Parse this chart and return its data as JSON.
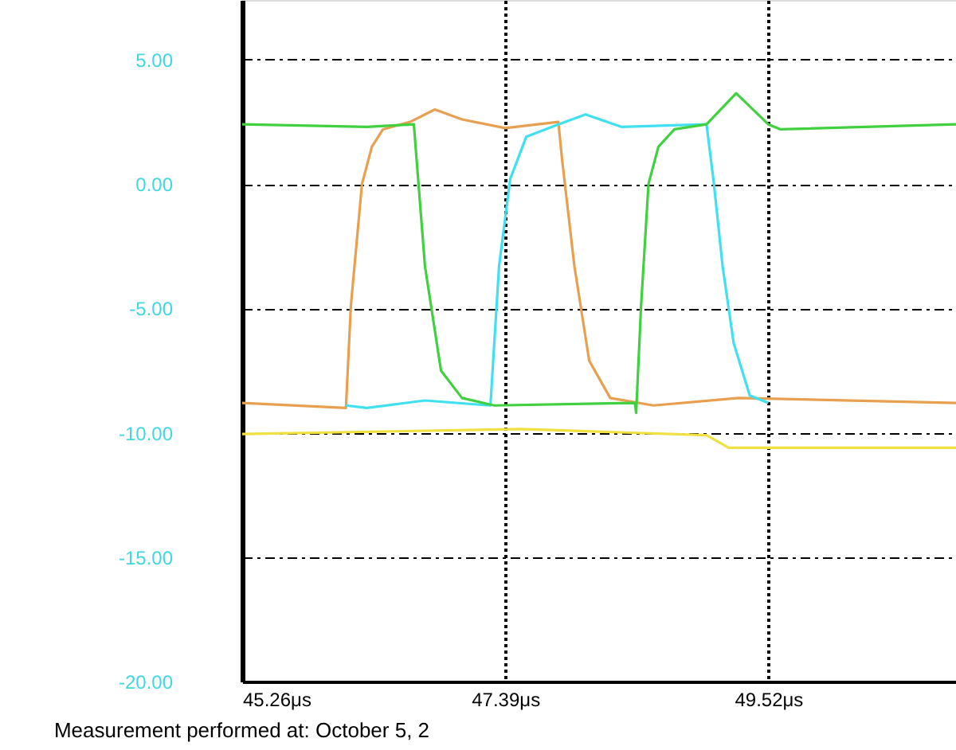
{
  "chart_data": {
    "type": "line",
    "xlim": [
      45.26,
      51.04
    ],
    "ylim": [
      -20,
      7.4
    ],
    "xticks": [
      {
        "value": 45.26,
        "label": "45.26μs"
      },
      {
        "value": 47.39,
        "label": "47.39μs"
      },
      {
        "value": 49.52,
        "label": "49.52μs"
      }
    ],
    "yticks": [
      {
        "value": -20,
        "label": "-20.00"
      },
      {
        "value": -15,
        "label": "-15.00"
      },
      {
        "value": -10,
        "label": "-10.00"
      },
      {
        "value": -5,
        "label": "-5.00"
      },
      {
        "value": 0,
        "label": "0.00"
      },
      {
        "value": 5,
        "label": "5.00"
      }
    ],
    "grid": true,
    "marker": "none",
    "line_style": "solid",
    "annotations": [
      "Measurement performed at:  October 5, 2"
    ],
    "series": [
      {
        "color": "#e8a050",
        "x": [
          45.26,
          46.1,
          46.14,
          46.23,
          46.31,
          46.4,
          46.62,
          46.82,
          47.04,
          47.39,
          47.82,
          47.85,
          47.95,
          48.07,
          48.24,
          48.59,
          49.28,
          51.04
        ],
        "values": [
          -8.8,
          -9.0,
          -4.9,
          0.0,
          1.5,
          2.2,
          2.5,
          3.0,
          2.6,
          2.25,
          2.5,
          1.0,
          -3.3,
          -7.1,
          -8.6,
          -8.9,
          -8.6,
          -8.8
        ]
      },
      {
        "color": "#40e0f0",
        "x": [
          46.1,
          46.27,
          46.74,
          47.27,
          47.34,
          47.43,
          47.56,
          47.82,
          48.04,
          48.33,
          49.02,
          49.08,
          49.15,
          49.24,
          49.37,
          49.52
        ],
        "values": [
          -8.9,
          -9.0,
          -8.7,
          -8.9,
          -3.3,
          0.2,
          1.9,
          2.4,
          2.8,
          2.3,
          2.4,
          0.0,
          -3.3,
          -6.4,
          -8.5,
          -8.8
        ]
      },
      {
        "color": "#40d040",
        "x": [
          45.26,
          46.27,
          46.65,
          46.74,
          46.87,
          47.04,
          47.3,
          48.44,
          48.45,
          48.49,
          48.55,
          48.63,
          48.76,
          49.02,
          49.26,
          49.52,
          49.62,
          51.04
        ],
        "values": [
          2.4,
          2.3,
          2.4,
          -3.3,
          -7.5,
          -8.6,
          -8.9,
          -8.8,
          -9.2,
          -4.9,
          0.0,
          1.5,
          2.2,
          2.4,
          3.65,
          2.4,
          2.2,
          2.4
        ]
      },
      {
        "color": "#f0e040",
        "x": [
          45.26,
          47.52,
          47.82,
          49.02,
          49.2,
          51.04
        ],
        "values": [
          -10.05,
          -9.85,
          -9.9,
          -10.1,
          -10.6,
          -10.6
        ]
      }
    ]
  }
}
